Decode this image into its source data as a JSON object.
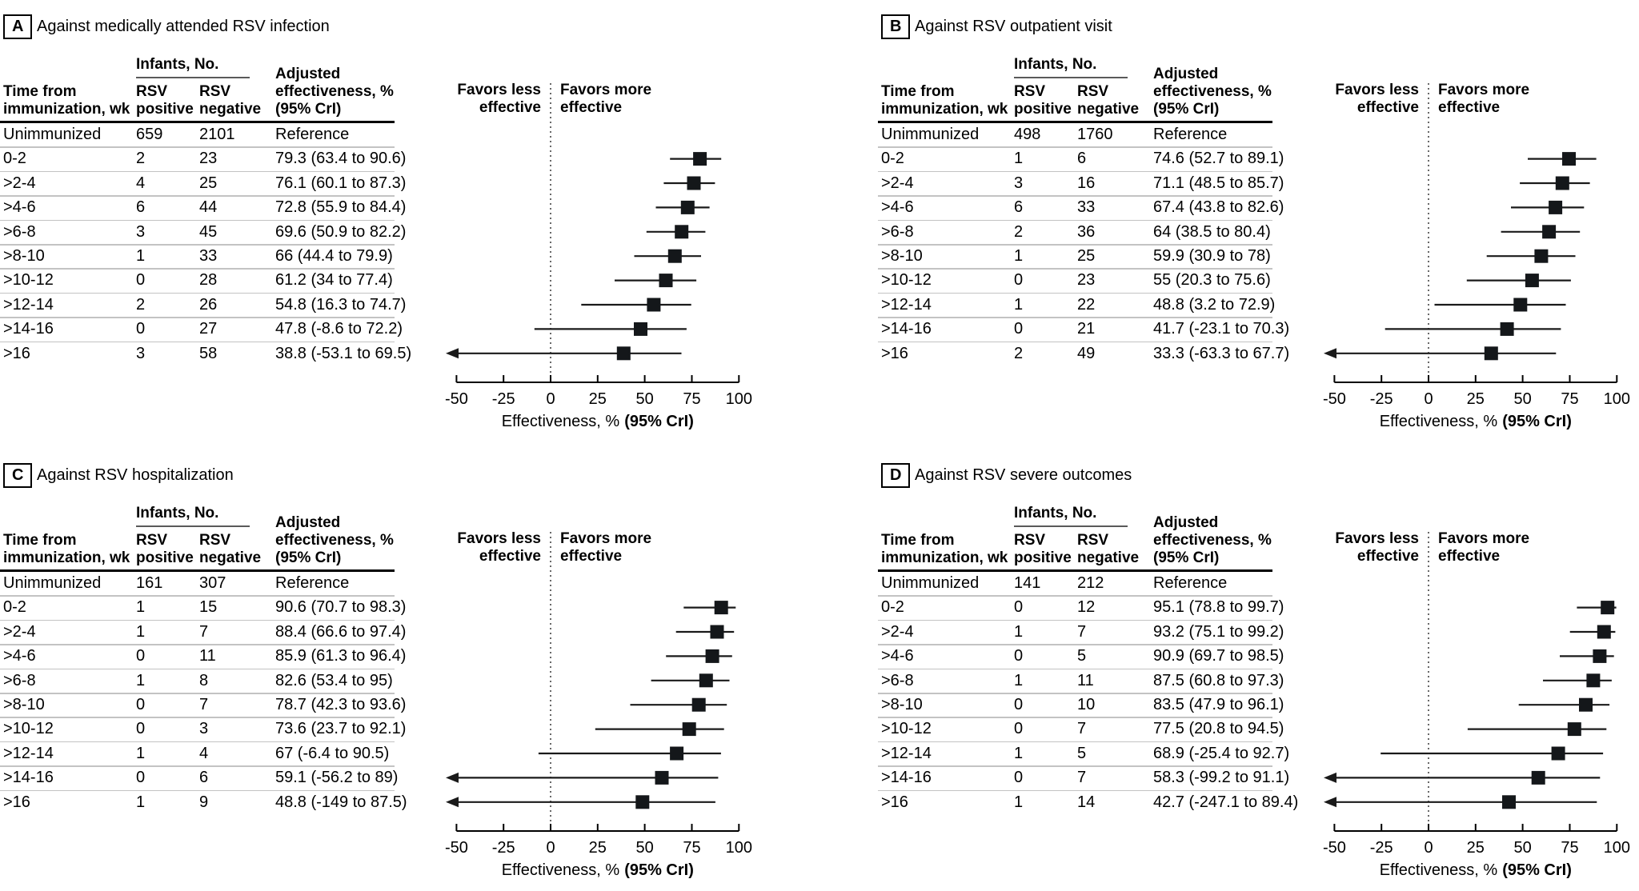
{
  "figure": {
    "labels": {
      "infants": "Infants, No.",
      "col_time": [
        "Time from",
        "immunization, wk"
      ],
      "col_pos": [
        "RSV",
        "positive"
      ],
      "col_neg": [
        "RSV",
        "negative"
      ],
      "col_eff": [
        "Adjusted",
        "effectiveness, %",
        "(95% CrI)"
      ],
      "favors_less": [
        "Favors less",
        "effective"
      ],
      "favors_more": [
        "Favors more",
        "effective"
      ]
    },
    "axis": {
      "ticks": [
        -50,
        -25,
        0,
        25,
        50,
        75,
        100
      ],
      "label_normal": "Effectiveness, %",
      "label_bold": "(95% CrI)",
      "min": -50,
      "max": 100
    },
    "colors": {
      "marker": "#14171a",
      "ci_line": "#1a1a1a",
      "separator": "#c3c3c3",
      "zero_line": "#444444"
    }
  },
  "chart_data": [
    {
      "type": "forest",
      "panel": "A",
      "title": "Against medically attended RSV infection",
      "xlabel": "Effectiveness, % (95% CrI)",
      "xlim": [
        -50,
        100
      ],
      "xticks": [
        -50,
        -25,
        0,
        25,
        50,
        75,
        100
      ],
      "columns": [
        "Time from immunization, wk",
        "RSV positive",
        "RSV negative",
        "Adjusted effectiveness, % (95% CrI)"
      ],
      "rows": [
        {
          "time": "Unimmunized",
          "rsv_positive": "659",
          "rsv_negative": "2101",
          "effectiveness": "Reference",
          "est": null,
          "lo": null,
          "hi": null,
          "arrow": false
        },
        {
          "time": "0-2",
          "rsv_positive": "2",
          "rsv_negative": "23",
          "effectiveness": "79.3 (63.4 to 90.6)",
          "est": 79.3,
          "lo": 63.4,
          "hi": 90.6,
          "arrow": false
        },
        {
          "time": ">2-4",
          "rsv_positive": "4",
          "rsv_negative": "25",
          "effectiveness": "76.1 (60.1 to 87.3)",
          "est": 76.1,
          "lo": 60.1,
          "hi": 87.3,
          "arrow": false
        },
        {
          "time": ">4-6",
          "rsv_positive": "6",
          "rsv_negative": "44",
          "effectiveness": "72.8 (55.9 to 84.4)",
          "est": 72.8,
          "lo": 55.9,
          "hi": 84.4,
          "arrow": false
        },
        {
          "time": ">6-8",
          "rsv_positive": "3",
          "rsv_negative": "45",
          "effectiveness": "69.6 (50.9 to 82.2)",
          "est": 69.6,
          "lo": 50.9,
          "hi": 82.2,
          "arrow": false
        },
        {
          "time": ">8-10",
          "rsv_positive": "1",
          "rsv_negative": "33",
          "effectiveness": "66 (44.4 to 79.9)",
          "est": 66,
          "lo": 44.4,
          "hi": 79.9,
          "arrow": false
        },
        {
          "time": ">10-12",
          "rsv_positive": "0",
          "rsv_negative": "28",
          "effectiveness": "61.2 (34 to 77.4)",
          "est": 61.2,
          "lo": 34,
          "hi": 77.4,
          "arrow": false
        },
        {
          "time": ">12-14",
          "rsv_positive": "2",
          "rsv_negative": "26",
          "effectiveness": "54.8 (16.3 to 74.7)",
          "est": 54.8,
          "lo": 16.3,
          "hi": 74.7,
          "arrow": false
        },
        {
          "time": ">14-16",
          "rsv_positive": "0",
          "rsv_negative": "27",
          "effectiveness": "47.8 (-8.6 to 72.2)",
          "est": 47.8,
          "lo": -8.6,
          "hi": 72.2,
          "arrow": false
        },
        {
          "time": ">16",
          "rsv_positive": "3",
          "rsv_negative": "58",
          "effectiveness": "38.8 (-53.1 to 69.5)",
          "est": 38.8,
          "lo": -53.1,
          "hi": 69.5,
          "arrow": true
        }
      ]
    },
    {
      "type": "forest",
      "panel": "B",
      "title": "Against RSV outpatient visit",
      "xlabel": "Effectiveness, % (95% CrI)",
      "xlim": [
        -50,
        100
      ],
      "xticks": [
        -50,
        -25,
        0,
        25,
        50,
        75,
        100
      ],
      "columns": [
        "Time from immunization, wk",
        "RSV positive",
        "RSV negative",
        "Adjusted effectiveness, % (95% CrI)"
      ],
      "rows": [
        {
          "time": "Unimmunized",
          "rsv_positive": "498",
          "rsv_negative": "1760",
          "effectiveness": "Reference",
          "est": null,
          "lo": null,
          "hi": null,
          "arrow": false
        },
        {
          "time": "0-2",
          "rsv_positive": "1",
          "rsv_negative": "6",
          "effectiveness": "74.6 (52.7 to 89.1)",
          "est": 74.6,
          "lo": 52.7,
          "hi": 89.1,
          "arrow": false
        },
        {
          "time": ">2-4",
          "rsv_positive": "3",
          "rsv_negative": "16",
          "effectiveness": "71.1 (48.5 to 85.7)",
          "est": 71.1,
          "lo": 48.5,
          "hi": 85.7,
          "arrow": false
        },
        {
          "time": ">4-6",
          "rsv_positive": "6",
          "rsv_negative": "33",
          "effectiveness": "67.4 (43.8 to 82.6)",
          "est": 67.4,
          "lo": 43.8,
          "hi": 82.6,
          "arrow": false
        },
        {
          "time": ">6-8",
          "rsv_positive": "2",
          "rsv_negative": "36",
          "effectiveness": "64 (38.5 to 80.4)",
          "est": 64,
          "lo": 38.5,
          "hi": 80.4,
          "arrow": false
        },
        {
          "time": ">8-10",
          "rsv_positive": "1",
          "rsv_negative": "25",
          "effectiveness": "59.9 (30.9 to 78)",
          "est": 59.9,
          "lo": 30.9,
          "hi": 78,
          "arrow": false
        },
        {
          "time": ">10-12",
          "rsv_positive": "0",
          "rsv_negative": "23",
          "effectiveness": "55 (20.3 to 75.6)",
          "est": 55,
          "lo": 20.3,
          "hi": 75.6,
          "arrow": false
        },
        {
          "time": ">12-14",
          "rsv_positive": "1",
          "rsv_negative": "22",
          "effectiveness": "48.8 (3.2 to 72.9)",
          "est": 48.8,
          "lo": 3.2,
          "hi": 72.9,
          "arrow": false
        },
        {
          "time": ">14-16",
          "rsv_positive": "0",
          "rsv_negative": "21",
          "effectiveness": "41.7 (-23.1 to 70.3)",
          "est": 41.7,
          "lo": -23.1,
          "hi": 70.3,
          "arrow": false
        },
        {
          "time": ">16",
          "rsv_positive": "2",
          "rsv_negative": "49",
          "effectiveness": "33.3 (-63.3 to 67.7)",
          "est": 33.3,
          "lo": -63.3,
          "hi": 67.7,
          "arrow": true
        }
      ]
    },
    {
      "type": "forest",
      "panel": "C",
      "title": "Against RSV hospitalization",
      "xlabel": "Effectiveness, % (95% CrI)",
      "xlim": [
        -50,
        100
      ],
      "xticks": [
        -50,
        -25,
        0,
        25,
        50,
        75,
        100
      ],
      "columns": [
        "Time from immunization, wk",
        "RSV positive",
        "RSV negative",
        "Adjusted effectiveness, % (95% CrI)"
      ],
      "rows": [
        {
          "time": "Unimmunized",
          "rsv_positive": "161",
          "rsv_negative": "307",
          "effectiveness": "Reference",
          "est": null,
          "lo": null,
          "hi": null,
          "arrow": false
        },
        {
          "time": "0-2",
          "rsv_positive": "1",
          "rsv_negative": "15",
          "effectiveness": "90.6 (70.7 to 98.3)",
          "est": 90.6,
          "lo": 70.7,
          "hi": 98.3,
          "arrow": false
        },
        {
          "time": ">2-4",
          "rsv_positive": "1",
          "rsv_negative": "7",
          "effectiveness": "88.4 (66.6 to 97.4)",
          "est": 88.4,
          "lo": 66.6,
          "hi": 97.4,
          "arrow": false
        },
        {
          "time": ">4-6",
          "rsv_positive": "0",
          "rsv_negative": "11",
          "effectiveness": "85.9 (61.3 to 96.4)",
          "est": 85.9,
          "lo": 61.3,
          "hi": 96.4,
          "arrow": false
        },
        {
          "time": ">6-8",
          "rsv_positive": "1",
          "rsv_negative": "8",
          "effectiveness": "82.6 (53.4 to 95)",
          "est": 82.6,
          "lo": 53.4,
          "hi": 95,
          "arrow": false
        },
        {
          "time": ">8-10",
          "rsv_positive": "0",
          "rsv_negative": "7",
          "effectiveness": "78.7 (42.3 to 93.6)",
          "est": 78.7,
          "lo": 42.3,
          "hi": 93.6,
          "arrow": false
        },
        {
          "time": ">10-12",
          "rsv_positive": "0",
          "rsv_negative": "3",
          "effectiveness": "73.6 (23.7 to 92.1)",
          "est": 73.6,
          "lo": 23.7,
          "hi": 92.1,
          "arrow": false
        },
        {
          "time": ">12-14",
          "rsv_positive": "1",
          "rsv_negative": "4",
          "effectiveness": "67 (-6.4 to 90.5)",
          "est": 67,
          "lo": -6.4,
          "hi": 90.5,
          "arrow": false
        },
        {
          "time": ">14-16",
          "rsv_positive": "0",
          "rsv_negative": "6",
          "effectiveness": "59.1 (-56.2 to 89)",
          "est": 59.1,
          "lo": -56.2,
          "hi": 89,
          "arrow": true
        },
        {
          "time": ">16",
          "rsv_positive": "1",
          "rsv_negative": "9",
          "effectiveness": "48.8 (-149 to 87.5)",
          "est": 48.8,
          "lo": -149,
          "hi": 87.5,
          "arrow": true
        }
      ]
    },
    {
      "type": "forest",
      "panel": "D",
      "title": "Against RSV severe outcomes",
      "xlabel": "Effectiveness, % (95% CrI)",
      "xlim": [
        -50,
        100
      ],
      "xticks": [
        -50,
        -25,
        0,
        25,
        50,
        75,
        100
      ],
      "columns": [
        "Time from immunization, wk",
        "RSV positive",
        "RSV negative",
        "Adjusted effectiveness, % (95% CrI)"
      ],
      "rows": [
        {
          "time": "Unimmunized",
          "rsv_positive": "141",
          "rsv_negative": "212",
          "effectiveness": "Reference",
          "est": null,
          "lo": null,
          "hi": null,
          "arrow": false
        },
        {
          "time": "0-2",
          "rsv_positive": "0",
          "rsv_negative": "12",
          "effectiveness": "95.1 (78.8 to 99.7)",
          "est": 95.1,
          "lo": 78.8,
          "hi": 99.7,
          "arrow": false
        },
        {
          "time": ">2-4",
          "rsv_positive": "1",
          "rsv_negative": "7",
          "effectiveness": "93.2 (75.1 to 99.2)",
          "est": 93.2,
          "lo": 75.1,
          "hi": 99.2,
          "arrow": false
        },
        {
          "time": ">4-6",
          "rsv_positive": "0",
          "rsv_negative": "5",
          "effectiveness": "90.9 (69.7 to 98.5)",
          "est": 90.9,
          "lo": 69.7,
          "hi": 98.5,
          "arrow": false
        },
        {
          "time": ">6-8",
          "rsv_positive": "1",
          "rsv_negative": "11",
          "effectiveness": "87.5 (60.8 to 97.3)",
          "est": 87.5,
          "lo": 60.8,
          "hi": 97.3,
          "arrow": false
        },
        {
          "time": ">8-10",
          "rsv_positive": "0",
          "rsv_negative": "10",
          "effectiveness": "83.5 (47.9 to 96.1)",
          "est": 83.5,
          "lo": 47.9,
          "hi": 96.1,
          "arrow": false
        },
        {
          "time": ">10-12",
          "rsv_positive": "0",
          "rsv_negative": "7",
          "effectiveness": "77.5 (20.8 to 94.5)",
          "est": 77.5,
          "lo": 20.8,
          "hi": 94.5,
          "arrow": false
        },
        {
          "time": ">12-14",
          "rsv_positive": "1",
          "rsv_negative": "5",
          "effectiveness": "68.9 (-25.4 to 92.7)",
          "est": 68.9,
          "lo": -25.4,
          "hi": 92.7,
          "arrow": false
        },
        {
          "time": ">14-16",
          "rsv_positive": "0",
          "rsv_negative": "7",
          "effectiveness": "58.3 (-99.2 to 91.1)",
          "est": 58.3,
          "lo": -99.2,
          "hi": 91.1,
          "arrow": true
        },
        {
          "time": ">16",
          "rsv_positive": "1",
          "rsv_negative": "14",
          "effectiveness": "42.7 (-247.1 to 89.4)",
          "est": 42.7,
          "lo": -247.1,
          "hi": 89.4,
          "arrow": true
        }
      ]
    }
  ]
}
